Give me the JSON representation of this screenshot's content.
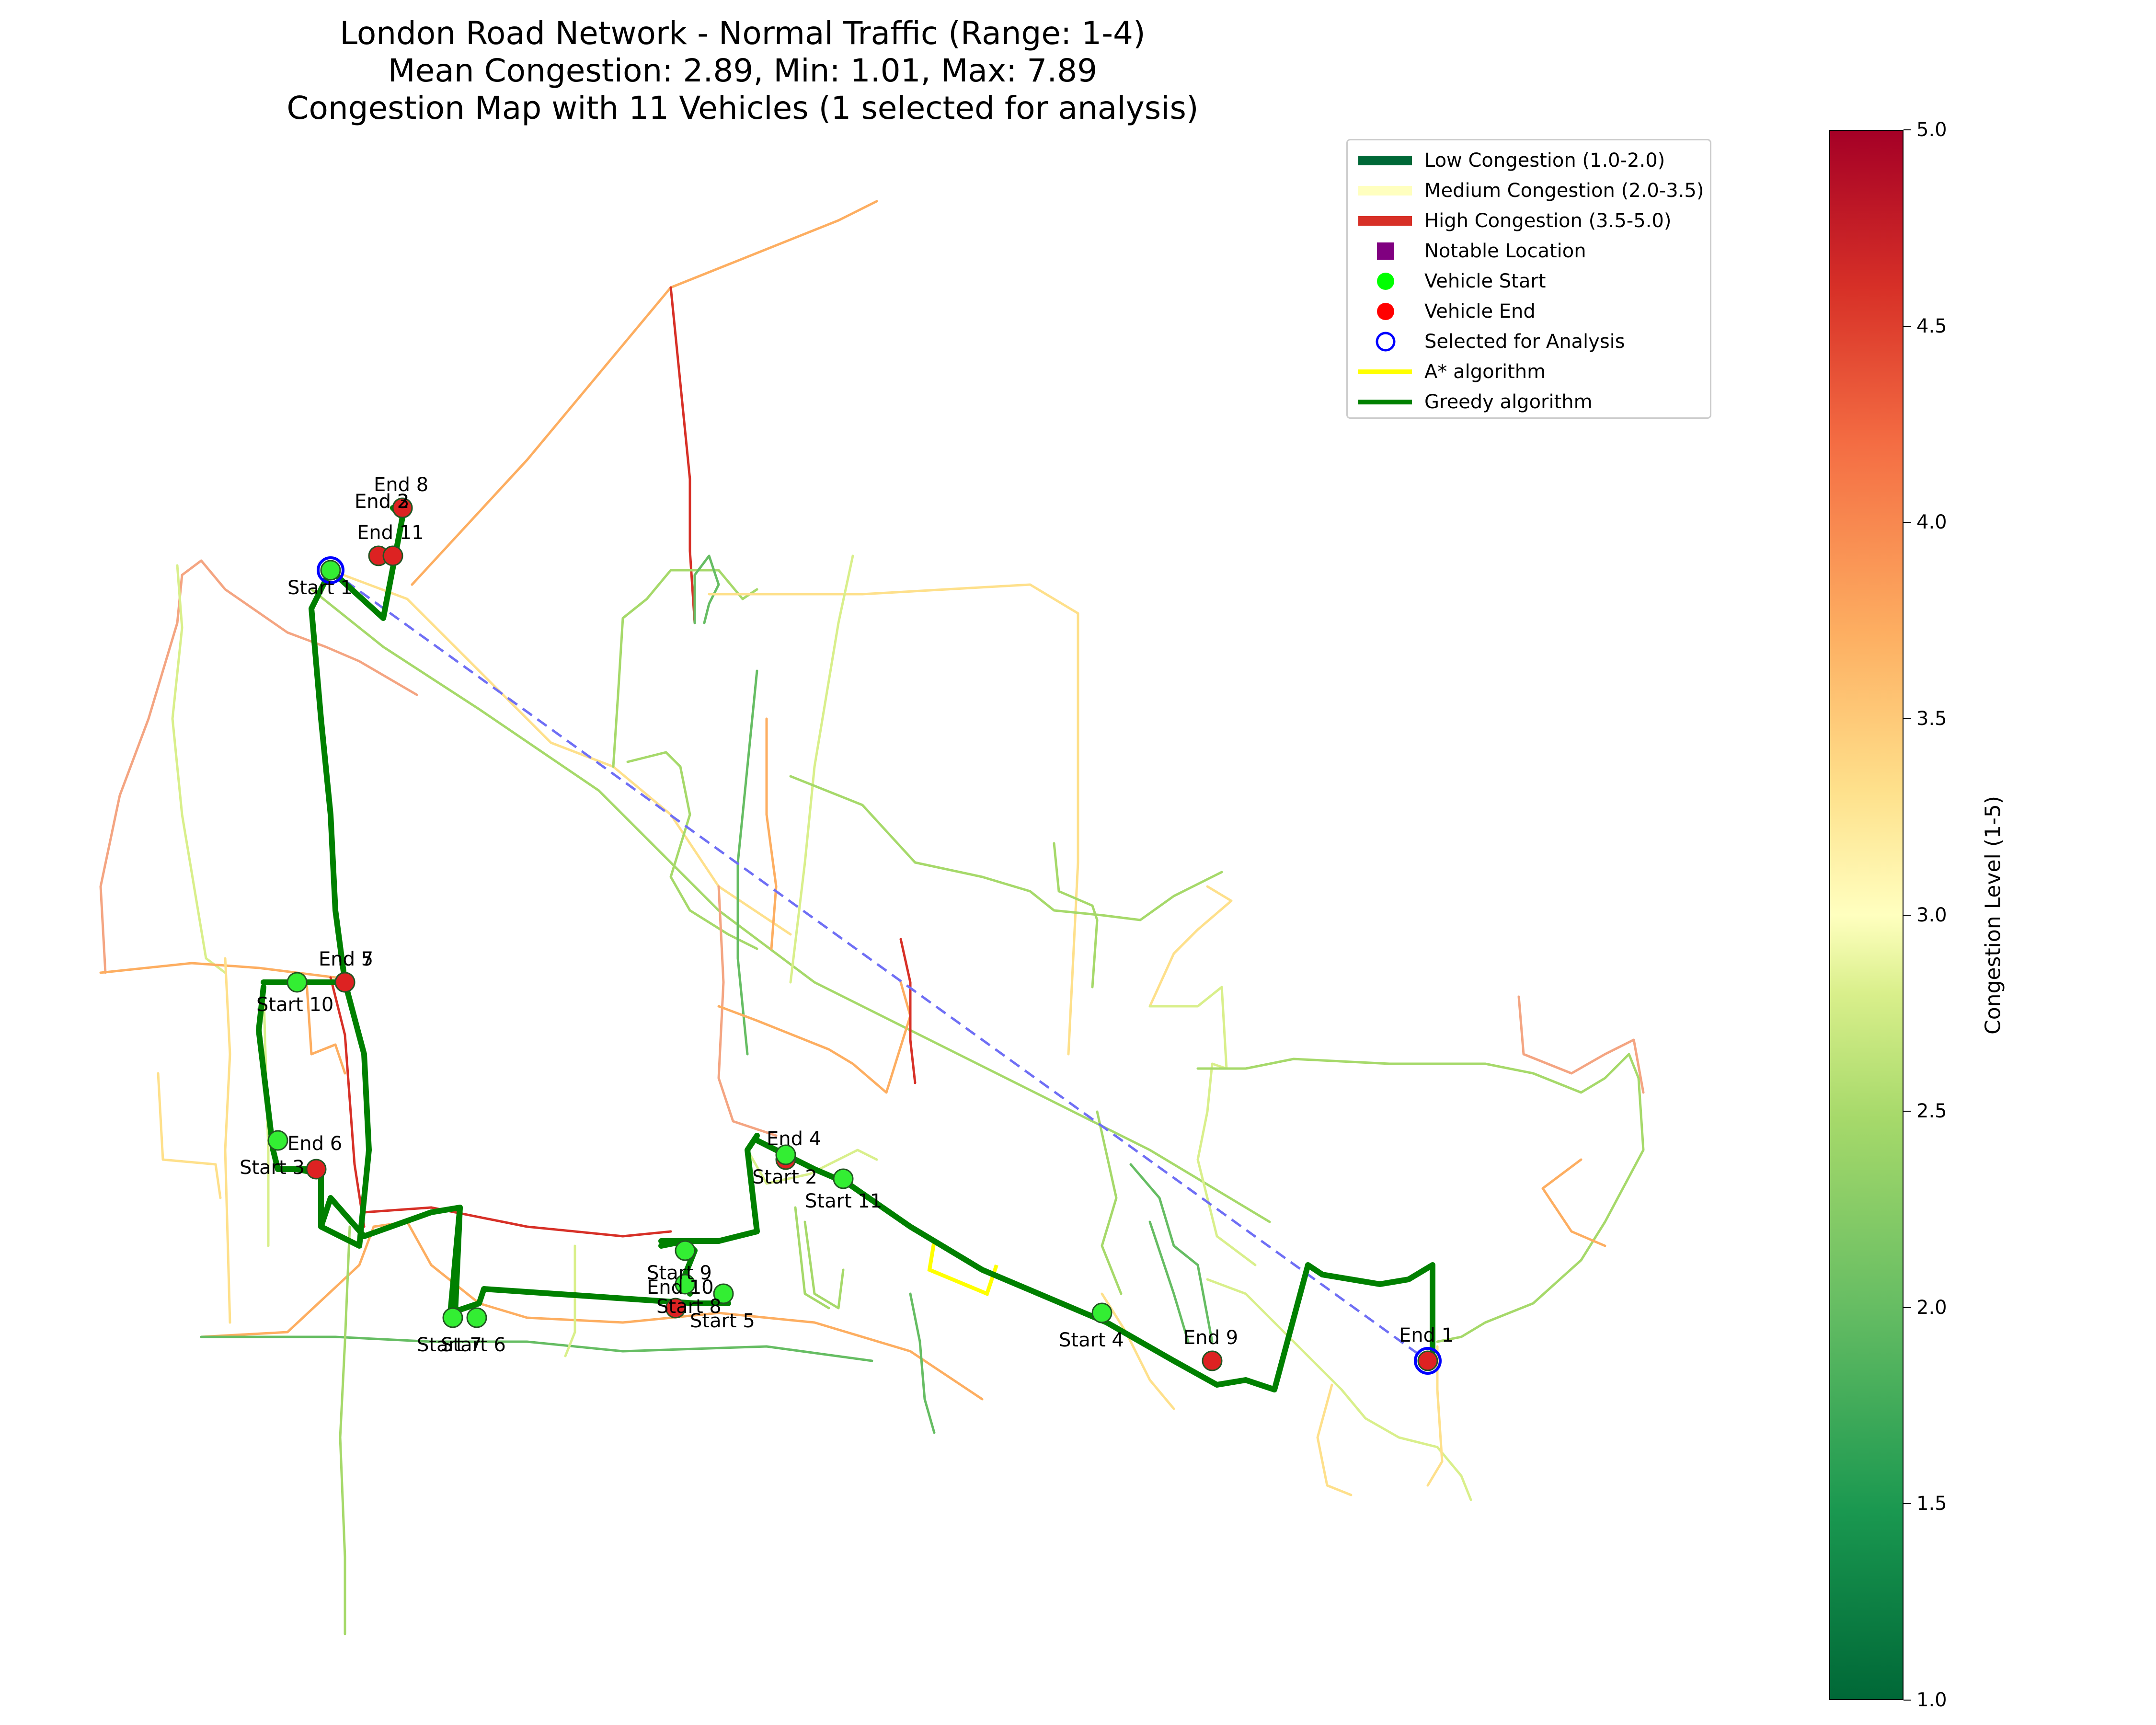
{
  "title": {
    "line1": "London Road Network - Normal Traffic (Range: 1-4)",
    "line2": "Mean Congestion: 2.89, Min: 1.01, Max: 7.89",
    "line3": "Congestion Map with 11 Vehicles (1 selected for analysis)"
  },
  "legend": {
    "items": [
      {
        "label": "Low Congestion (1.0-2.0)",
        "kind": "line",
        "color": "#006837"
      },
      {
        "label": "Medium Congestion (2.0-3.5)",
        "kind": "line",
        "color": "#ffffbf"
      },
      {
        "label": "High Congestion (3.5-5.0)",
        "kind": "line",
        "color": "#d73027"
      },
      {
        "label": "Notable Location",
        "kind": "square",
        "color": "#800080"
      },
      {
        "label": "Vehicle Start",
        "kind": "dot",
        "color": "#00ff00"
      },
      {
        "label": "Vehicle End",
        "kind": "dot",
        "color": "#ff0000"
      },
      {
        "label": "Selected for Analysis",
        "kind": "ring",
        "color": "#0000ff"
      },
      {
        "label": "A* algorithm",
        "kind": "thinline",
        "color": "#ffff00"
      },
      {
        "label": "Greedy algorithm",
        "kind": "thinline",
        "color": "#008000"
      }
    ]
  },
  "colorbar": {
    "label": "Congestion Level (1-5)",
    "ticks": [
      "1.0",
      "1.5",
      "2.0",
      "2.5",
      "3.0",
      "3.5",
      "4.0",
      "4.5",
      "5.0"
    ],
    "range": [
      1.0,
      5.0
    ]
  },
  "colors": {
    "greedy": "#008000",
    "astar": "#ffff00",
    "straight_line": "#6f6ff5",
    "start_fill": "#33ee33",
    "end_fill": "#dd2222"
  },
  "vehicles": {
    "starts": [
      "Start 1",
      "Start 2",
      "Start 3",
      "Start 4",
      "Start 5",
      "Start 6",
      "Start 7",
      "Start 8",
      "Start 9",
      "Start 10",
      "Start 11"
    ],
    "ends": [
      "End 1",
      "End 2",
      "End 3",
      "End 4",
      "End 5",
      "End 6",
      "End 7",
      "End 8",
      "End 9",
      "End 10",
      "End 11"
    ]
  }
}
